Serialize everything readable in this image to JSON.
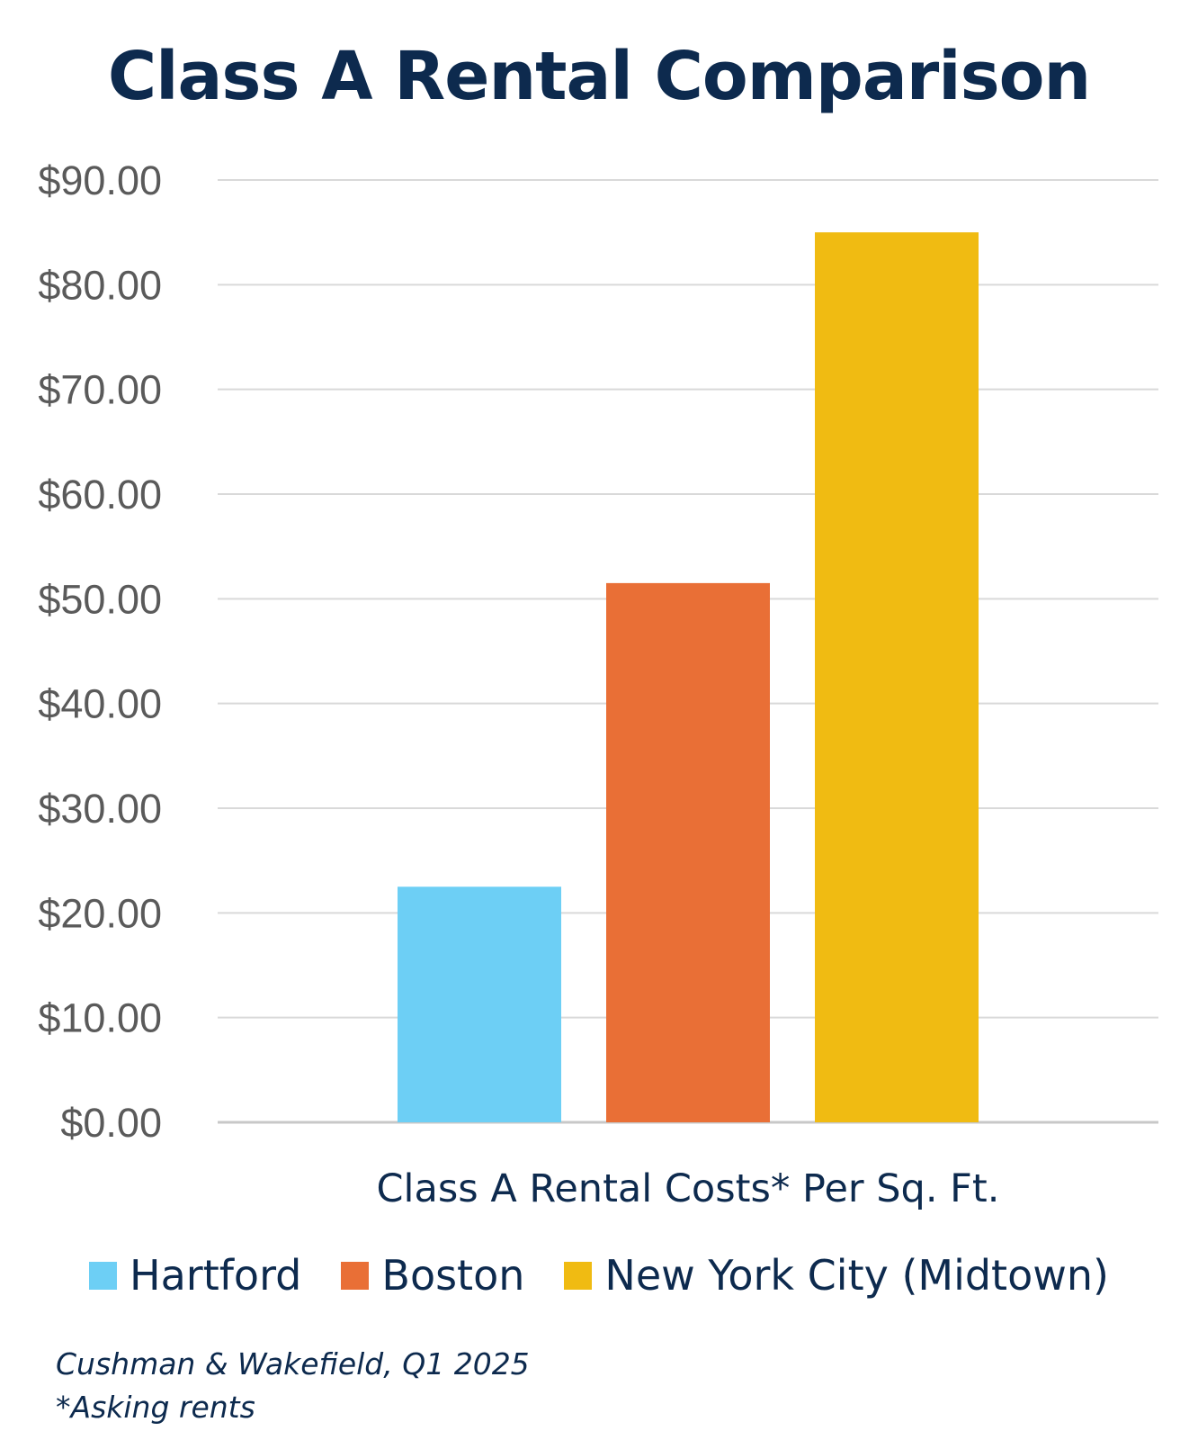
{
  "chart_data": {
    "type": "bar",
    "title": "Class A Rental Comparison",
    "xlabel": "Class A Rental Costs* Per Sq. Ft.",
    "ylabel": "",
    "ylim": [
      0,
      90
    ],
    "yticks": [
      "$0.00",
      "$10.00",
      "$20.00",
      "$30.00",
      "$40.00",
      "$50.00",
      "$60.00",
      "$70.00",
      "$80.00",
      "$90.00"
    ],
    "categories": [
      "Class A Rental Costs* Per Sq. Ft."
    ],
    "series": [
      {
        "name": "Hartford",
        "values": [
          22.5
        ],
        "color": "#6dcff5"
      },
      {
        "name": "Boston",
        "values": [
          51.5
        ],
        "color": "#e96f36"
      },
      {
        "name": "New York City (Midtown)",
        "values": [
          85
        ],
        "color": "#f0bb12"
      }
    ],
    "grid": true,
    "legend_position": "bottom"
  },
  "legend": {
    "items": [
      {
        "label": "Hartford",
        "color": "#6dcff5"
      },
      {
        "label": "Boston",
        "color": "#e96f36"
      },
      {
        "label": "New York City (Midtown)",
        "color": "#f0bb12"
      }
    ]
  },
  "footnotes": {
    "source": "Cushman & Wakefield, Q1 2025",
    "note": "*Asking rents"
  }
}
